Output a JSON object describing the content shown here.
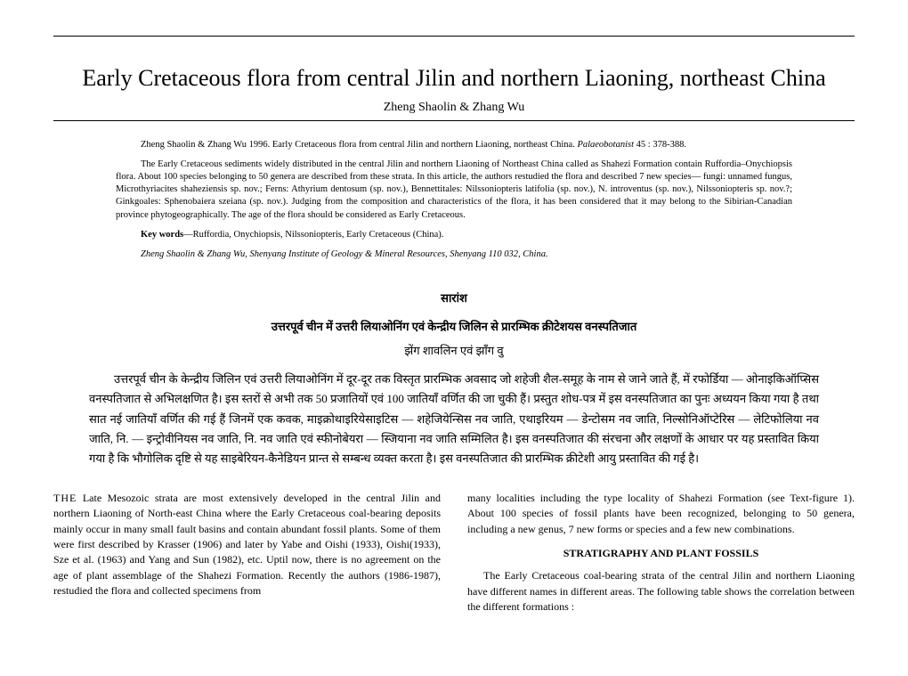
{
  "title": "Early Cretaceous flora from central Jilin and northern Liaoning, northeast China",
  "authors": "Zheng Shaolin & Zhang Wu",
  "citation": {
    "text": "Zheng Shaolin & Zhang Wu 1996. Early Cretaceous flora from central Jilin and northern Liaoning, northeast China. ",
    "journal": "Palaeobotanist",
    "vol_pages": " 45 : 378-388."
  },
  "abstract": {
    "p1": "The Early Cretaceous sediments widely distributed in the central Jilin and northern Liaoning of Northeast China called as Shahezi Formation contain Ruffordia–Onychiopsis flora. About 100 species belonging to 50 genera are described from these strata. In this article, the authors restudied the flora and described 7 new species— fungi: unnamed fungus, Microthyriacites shaheziensis sp. nov.; Ferns: Athyrium dentosum (sp. nov.), Bennettitales: Nilssoniopteris latifolia (sp. nov.), N. introventus (sp. nov.), Nilssoniopteris sp. nov.?; Ginkgoales: Sphenobaiera szeiana (sp. nov.). Judging from the composition and characteristics of the flora, it has been considered that it may belong to the Sibirian-Canadian province phytogeographically. The age of the flora should be considered as Early Cretaceous."
  },
  "keywords": {
    "label": "Key words",
    "text": "—Ruffordia, Onychiopsis, Nilssoniopteris, Early Cretaceous (China)."
  },
  "affiliation": "Zheng Shaolin & Zhang Wu, Shenyang Institute of Geology & Mineral Resources, Shenyang 110 032, China.",
  "hindi": {
    "heading": "सारांश",
    "title": "उत्तरपूर्व चीन में उत्तरी लियाओनिंग एवं केन्द्रीय जिलिन से प्रारम्भिक क्रीटेशयस वनस्पतिजात",
    "authors": "झेंग शावलिन एवं झाँग वु",
    "body": "उत्तरपूर्व चीन के केन्द्रीय जिलिन एवं उत्तरी लियाओनिंग में दूर-दूर तक विस्तृत प्रारम्भिक अवसाद जो शहेजी शैल-समूह के नाम से जाने जाते हैं, में रफोर्डिया — ओनाइकिऑप्सिस वनस्पतिजात से अभिलक्षणित है। इस स्तरों से अभी तक 50 प्रजातियों एवं 100 जातियाँ वर्णित की जा चुकी हैं। प्रस्तुत शोध-पत्र में इस वनस्पतिजात का पुनः अध्ययन किया गया है तथा सात नई जातियाँ वर्णित की गई हैं जिनमें एक कवक, माइक्रोथाइरियेसाइटिस — शहेजियेन्सिस नव जाति, एथाइरियम — डेन्टोसम नव जाति, निल्सोनिऑप्टेरिस — लेटिफोलिया नव जाति, नि. — इन्ट्रोवीनियस नव जाति, नि. नव जाति एवं स्फीनोबेयरा — स्जियाना नव जाति सम्मिलित है। इस वनस्पतिजात की संरचना और लक्षणों के आधार पर यह प्रस्तावित किया गया है कि भौगोलिक दृष्टि से यह साइबेरियन-कैनेडियन प्रान्त से सम्बन्ध व्यक्त करता है। इस वनस्पतिजात की प्रारम्भिक क्रीटेशी आयु प्रस्तावित की गई है।"
  },
  "body": {
    "left": {
      "first_word": "THE",
      "p1_rest": " Late Mesozoic strata are most extensively developed in the central Jilin and northern Liaoning of North-east China where the Early Cretaceous coal-bearing deposits mainly occur in many small fault basins and contain abundant fossil plants. Some of them were first described by Krasser (1906) and later by Yabe and Oishi (1933), Oishi(1933), Sze et al. (1963) and Yang and Sun (1982), etc. Uptil now, there is no agreement on the age of plant assemblage of the Shahezi Formation. Recently the authors (1986-1987), restudied the flora and collected specimens from"
    },
    "right": {
      "p1": "many localities including the type locality of Shahezi Formation (see Text-figure 1). About 100 species of fossil plants have been recognized, belonging to 50 genera, including a new genus, 7 new forms or species and a few new combinations.",
      "section_head": "STRATIGRAPHY AND PLANT FOSSILS",
      "p2": "The Early Cretaceous coal-bearing strata of the central Jilin and northern Liaoning have different names in different areas. The following table shows the correlation between the different formations :"
    }
  }
}
